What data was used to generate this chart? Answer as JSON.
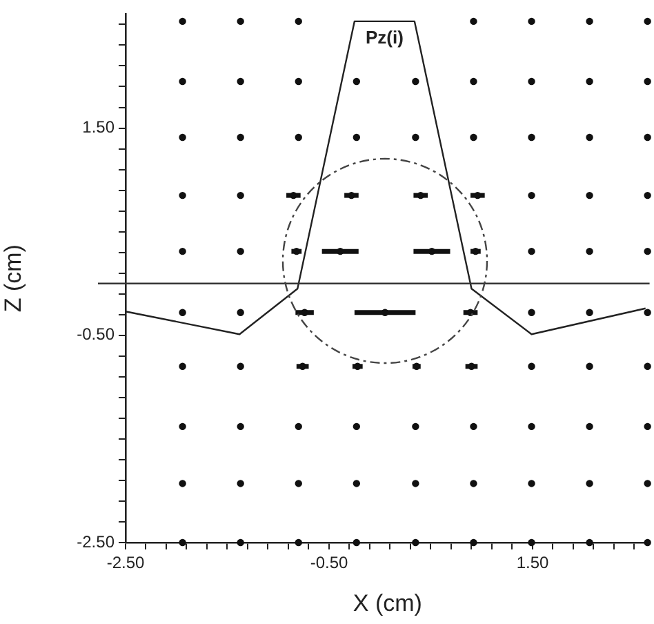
{
  "chart_data": {
    "type": "scatter",
    "xlabel": "X (cm)",
    "ylabel": "Z (cm)",
    "xlim": [
      -2.5,
      2.65
    ],
    "ylim": [
      -2.5,
      2.6
    ],
    "xticks": [
      {
        "value": -2.5,
        "label": "-2.50"
      },
      {
        "value": -2.3,
        "label": null
      },
      {
        "value": -2.1,
        "label": null
      },
      {
        "value": -1.9,
        "label": null
      },
      {
        "value": -1.7,
        "label": null
      },
      {
        "value": -1.5,
        "label": null
      },
      {
        "value": -1.3,
        "label": null
      },
      {
        "value": -1.1,
        "label": null
      },
      {
        "value": -0.9,
        "label": null
      },
      {
        "value": -0.7,
        "label": null
      },
      {
        "value": -0.5,
        "label": "-0.50"
      },
      {
        "value": -0.3,
        "label": null
      },
      {
        "value": -0.1,
        "label": null
      },
      {
        "value": 0.1,
        "label": null
      },
      {
        "value": 0.3,
        "label": null
      },
      {
        "value": 0.5,
        "label": null
      },
      {
        "value": 0.7,
        "label": null
      },
      {
        "value": 0.9,
        "label": null
      },
      {
        "value": 1.1,
        "label": null
      },
      {
        "value": 1.3,
        "label": null
      },
      {
        "value": 1.5,
        "label": "1.50"
      },
      {
        "value": 1.7,
        "label": null
      },
      {
        "value": 1.9,
        "label": null
      },
      {
        "value": 2.1,
        "label": null
      },
      {
        "value": 2.3,
        "label": null
      },
      {
        "value": 2.5,
        "label": null
      }
    ],
    "yticks": [
      {
        "value": -2.5,
        "label": "-2.50"
      },
      {
        "value": -2.3,
        "label": null
      },
      {
        "value": -2.1,
        "label": null
      },
      {
        "value": -1.9,
        "label": null
      },
      {
        "value": -1.7,
        "label": null
      },
      {
        "value": -1.5,
        "label": null
      },
      {
        "value": -1.3,
        "label": null
      },
      {
        "value": -1.1,
        "label": null
      },
      {
        "value": -0.9,
        "label": null
      },
      {
        "value": -0.7,
        "label": null
      },
      {
        "value": -0.5,
        "label": "-0.50"
      },
      {
        "value": -0.3,
        "label": null
      },
      {
        "value": -0.1,
        "label": null
      },
      {
        "value": 0.1,
        "label": null
      },
      {
        "value": 0.3,
        "label": null
      },
      {
        "value": 0.5,
        "label": null
      },
      {
        "value": 0.7,
        "label": null
      },
      {
        "value": 0.9,
        "label": null
      },
      {
        "value": 1.1,
        "label": null
      },
      {
        "value": 1.3,
        "label": null
      },
      {
        "value": 1.5,
        "label": "1.50"
      },
      {
        "value": 1.7,
        "label": null
      },
      {
        "value": 1.9,
        "label": null
      },
      {
        "value": 2.1,
        "label": null
      },
      {
        "value": 2.3,
        "label": null
      },
      {
        "value": 2.5,
        "label": null
      }
    ],
    "grid": false,
    "legend": false,
    "ref_lines": [
      {
        "axis": "y",
        "value": 0,
        "color": "#333333"
      }
    ],
    "series": [
      {
        "type": "scatter",
        "color": "#111111",
        "marker": "circle",
        "x": [
          -1.94,
          -1.37,
          -0.8,
          0.92,
          1.49,
          2.06,
          2.63,
          -1.94,
          -1.37,
          -0.8,
          -0.23,
          0.35,
          0.92,
          1.49,
          2.06,
          2.63,
          -1.94,
          -1.37,
          -0.8,
          -0.23,
          0.35,
          0.92,
          1.49,
          2.06,
          2.63,
          -1.94,
          -1.37,
          -0.85,
          -0.28,
          0.4,
          0.96,
          1.49,
          2.06,
          2.63,
          -1.94,
          -1.37,
          -0.82,
          -0.39,
          0.51,
          0.94,
          1.49,
          2.06,
          2.63,
          -1.94,
          -1.37,
          -0.74,
          0.05,
          0.89,
          1.49,
          2.06,
          2.63,
          -1.94,
          -1.37,
          -0.76,
          -0.22,
          0.36,
          0.9,
          1.49,
          2.06,
          2.63,
          -1.94,
          -1.37,
          -0.8,
          -0.23,
          0.35,
          0.92,
          1.49,
          2.06,
          2.63,
          -1.94,
          -1.37,
          -0.8,
          -0.23,
          0.35,
          0.92,
          1.49,
          2.06,
          2.63,
          -1.94,
          -1.37,
          -0.8,
          -0.23,
          0.35,
          0.92,
          1.49,
          2.06,
          2.63
        ],
        "values": [
          2.53,
          2.53,
          2.53,
          2.53,
          2.53,
          2.53,
          2.53,
          1.95,
          1.95,
          1.95,
          1.95,
          1.95,
          1.95,
          1.95,
          1.95,
          1.95,
          1.41,
          1.41,
          1.41,
          1.41,
          1.41,
          1.41,
          1.41,
          1.41,
          1.41,
          0.85,
          0.85,
          0.85,
          0.85,
          0.85,
          0.85,
          0.85,
          0.85,
          0.85,
          0.31,
          0.31,
          0.31,
          0.31,
          0.31,
          0.31,
          0.31,
          0.31,
          0.31,
          -0.28,
          -0.28,
          -0.28,
          -0.28,
          -0.28,
          -0.28,
          -0.28,
          -0.28,
          -0.8,
          -0.8,
          -0.8,
          -0.8,
          -0.8,
          -0.8,
          -0.8,
          -0.8,
          -0.8,
          -1.38,
          -1.38,
          -1.38,
          -1.38,
          -1.38,
          -1.38,
          -1.38,
          -1.38,
          -1.38,
          -1.93,
          -1.93,
          -1.93,
          -1.93,
          -1.93,
          -1.93,
          -1.93,
          -1.93,
          -1.93,
          -2.5,
          -2.5,
          -2.5,
          -2.5,
          -2.5,
          -2.5,
          -2.5,
          -2.5,
          -2.5
        ],
        "xerrors": [
          null,
          null,
          null,
          null,
          null,
          null,
          null,
          null,
          null,
          null,
          null,
          null,
          null,
          null,
          null,
          null,
          null,
          null,
          null,
          null,
          null,
          null,
          null,
          null,
          null,
          null,
          null,
          0.07,
          0.07,
          0.07,
          0.07,
          null,
          null,
          null,
          null,
          null,
          0.05,
          0.18,
          0.18,
          0.05,
          null,
          null,
          null,
          null,
          null,
          0.09,
          0.3,
          0.07,
          null,
          null,
          null,
          null,
          null,
          0.06,
          0.05,
          0.04,
          0.06,
          null,
          null,
          null,
          null,
          null,
          null,
          null,
          null,
          null,
          null,
          null,
          null,
          null,
          null,
          null,
          null,
          null,
          null,
          null,
          null,
          null,
          null,
          null,
          null,
          null,
          null,
          null,
          null,
          null,
          null
        ]
      },
      {
        "type": "line",
        "name": "Pz(i)",
        "color": "#222222",
        "marker": "none",
        "line_style": "solid",
        "x": [
          -2.5,
          -1.38,
          -0.81,
          -0.25,
          0.34,
          0.9,
          1.49,
          2.61
        ],
        "values": [
          -0.27,
          -0.49,
          -0.05,
          2.53,
          2.53,
          -0.05,
          -0.49,
          -0.24
        ]
      }
    ]
  }
}
